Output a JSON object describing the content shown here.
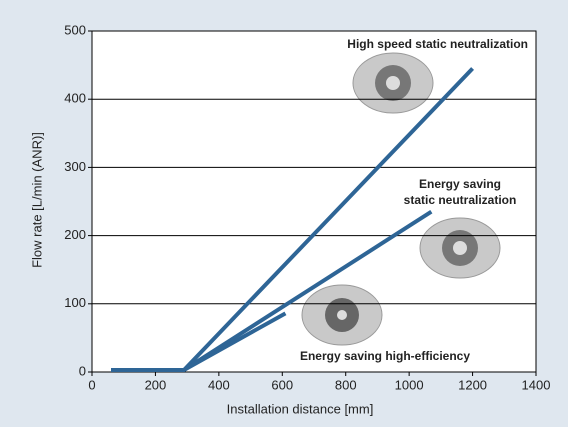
{
  "chart_data": {
    "type": "line",
    "x_label": "Installation distance [mm]",
    "y_label": "Flow rate [L/min (ANR)]",
    "xlim": [
      0,
      1400
    ],
    "xticks": [
      0,
      200,
      400,
      600,
      800,
      1000,
      1200,
      1400
    ],
    "ylim": [
      0,
      500
    ],
    "yticks": [
      0,
      100,
      200,
      300,
      400,
      500
    ],
    "grid": true,
    "series": [
      {
        "color": "#2e6596",
        "x": [
          60,
          290,
          1200
        ],
        "values": [
          3,
          3,
          445
        ]
      },
      {
        "color": "#2e6596",
        "x": [
          60,
          290,
          1070
        ],
        "values": [
          3,
          3,
          235
        ]
      },
      {
        "color": "#2e6596",
        "x": [
          60,
          290,
          610
        ],
        "values": [
          3,
          3,
          86
        ]
      }
    ],
    "annotations": [
      "High speed static neutralization",
      "Energy saving",
      "static neutralization",
      "Energy saving high-efficiency"
    ]
  }
}
